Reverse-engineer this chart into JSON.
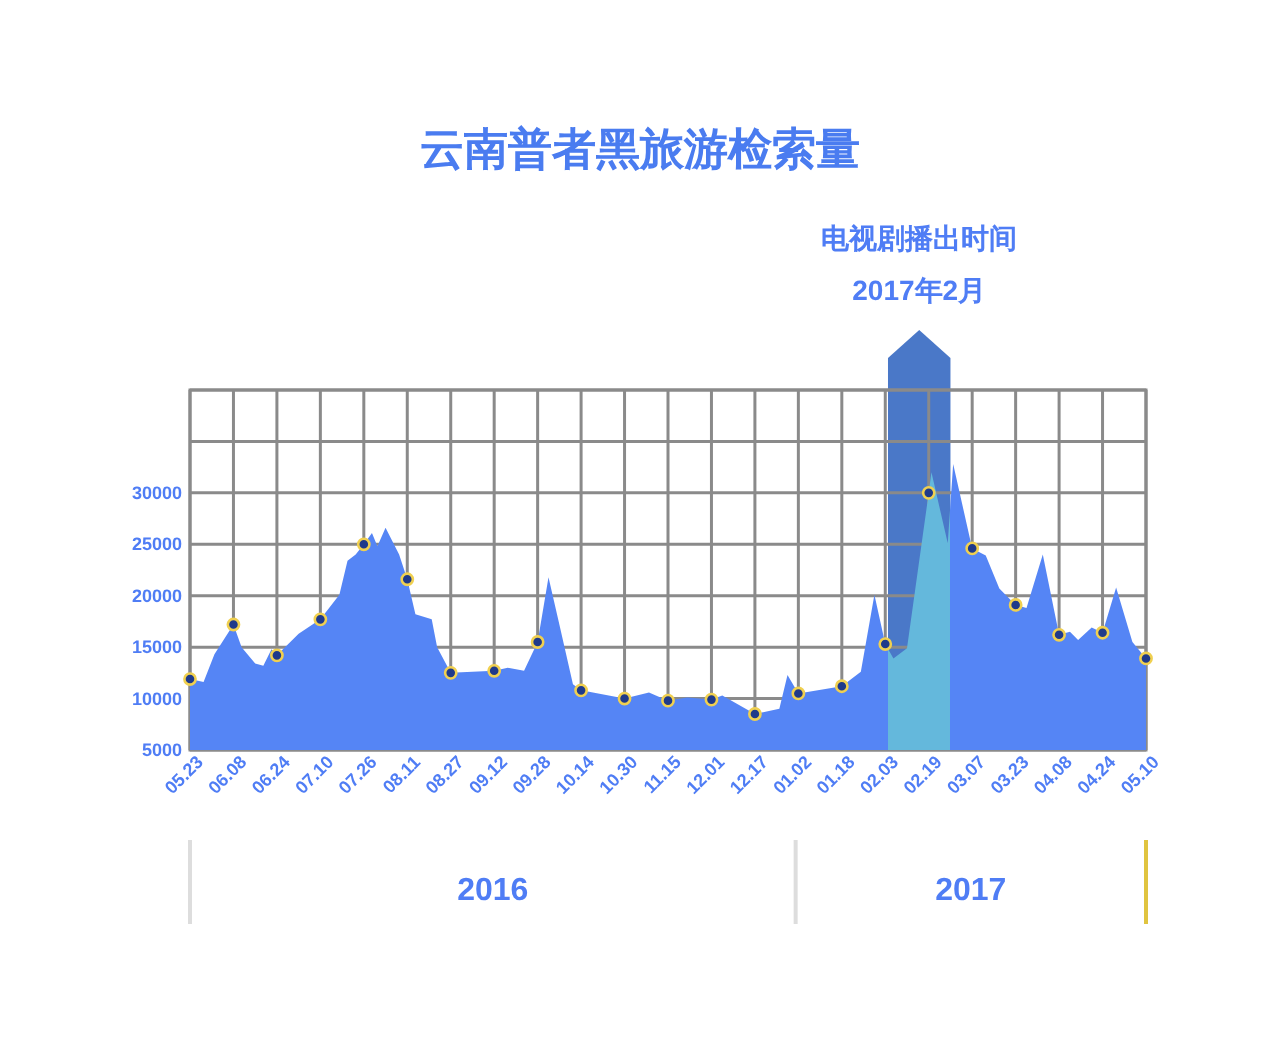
{
  "chart_data": {
    "type": "area",
    "title": "云南普者黑旅游检索量",
    "xlim": [
      "2016-05-23",
      "2017-05-10"
    ],
    "xticks": [
      {
        "value": "2016-05-23",
        "label": "05.23"
      },
      {
        "value": "2016-06-08",
        "label": "06.08"
      },
      {
        "value": "2016-06-24",
        "label": "06.24"
      },
      {
        "value": "2016-07-10",
        "label": "07.10"
      },
      {
        "value": "2016-07-26",
        "label": "07.26"
      },
      {
        "value": "2016-08-11",
        "label": "08.11"
      },
      {
        "value": "2016-08-27",
        "label": "08.27"
      },
      {
        "value": "2016-09-12",
        "label": "09.12"
      },
      {
        "value": "2016-09-28",
        "label": "09.28"
      },
      {
        "value": "2016-10-14",
        "label": "10.14"
      },
      {
        "value": "2016-10-30",
        "label": "10.30"
      },
      {
        "value": "2016-11-15",
        "label": "11.15"
      },
      {
        "value": "2016-12-01",
        "label": "12.01"
      },
      {
        "value": "2016-12-17",
        "label": "12.17"
      },
      {
        "value": "2017-01-02",
        "label": "01.02"
      },
      {
        "value": "2017-01-18",
        "label": "01.18"
      },
      {
        "value": "2017-02-03",
        "label": "02.03"
      },
      {
        "value": "2017-02-19",
        "label": "02.19"
      },
      {
        "value": "2017-03-07",
        "label": "03.07"
      },
      {
        "value": "2017-03-23",
        "label": "03.23"
      },
      {
        "value": "2017-04-08",
        "label": "04.08"
      },
      {
        "value": "2017-04-24",
        "label": "04.24"
      },
      {
        "value": "2017-05-10",
        "label": "05.10"
      }
    ],
    "ylim": [
      5000,
      40000
    ],
    "yticks": [
      5000,
      10000,
      15000,
      20000,
      25000,
      30000,
      {
        "value": 35000,
        "label": null
      },
      {
        "value": 40000,
        "label": null
      }
    ],
    "grid": true,
    "series": [
      {
        "color": "#5585f5",
        "x": [
          "2016-05-23",
          "2016-05-28",
          "2016-06-01",
          "2016-06-08",
          "2016-06-11",
          "2016-06-16",
          "2016-06-19",
          "2016-06-22",
          "2016-06-24",
          "2016-07-02",
          "2016-07-10",
          "2016-07-17",
          "2016-07-20",
          "2016-07-23",
          "2016-07-26",
          "2016-07-29",
          "2016-07-31",
          "2016-08-03",
          "2016-08-08",
          "2016-08-11",
          "2016-08-14",
          "2016-08-20",
          "2016-08-22",
          "2016-08-27",
          "2016-09-12",
          "2016-09-17",
          "2016-09-23",
          "2016-09-28",
          "2016-10-02",
          "2016-10-06",
          "2016-10-11",
          "2016-10-14",
          "2016-10-30",
          "2016-11-08",
          "2016-11-15",
          "2016-11-22",
          "2016-12-01",
          "2016-12-05",
          "2016-12-17",
          "2016-12-26",
          "2016-12-29",
          "2017-01-02",
          "2017-01-18",
          "2017-01-25",
          "2017-01-30",
          "2017-02-03",
          "2017-02-06",
          "2017-02-11",
          "2017-02-19",
          "2017-02-20",
          "2017-02-26",
          "2017-02-28",
          "2017-03-07",
          "2017-03-12",
          "2017-03-17",
          "2017-03-23",
          "2017-03-27",
          "2017-04-02",
          "2017-04-08",
          "2017-04-12",
          "2017-04-15",
          "2017-04-20",
          "2017-04-24",
          "2017-04-29",
          "2017-05-05",
          "2017-05-10"
        ],
        "values": [
          11900,
          11600,
          14300,
          17200,
          15000,
          13400,
          13200,
          14800,
          14200,
          16300,
          17700,
          20100,
          23400,
          24000,
          25000,
          26100,
          24800,
          26600,
          24000,
          21600,
          18200,
          17700,
          15000,
          12500,
          12700,
          13000,
          12700,
          15500,
          21800,
          17200,
          11400,
          10800,
          10000,
          10600,
          9800,
          10100,
          9900,
          10300,
          8500,
          9000,
          12300,
          10500,
          11200,
          12600,
          20100,
          15300,
          13900,
          14900,
          30000,
          32000,
          25100,
          32800,
          24600,
          23900,
          20700,
          19100,
          18800,
          24000,
          16200,
          16500,
          15700,
          16900,
          16400,
          20800,
          15500,
          13900
        ]
      },
      {
        "type": "scatter",
        "color": "#1f3a8a",
        "marker": "circle",
        "x": [
          "2016-05-23",
          "2016-06-08",
          "2016-06-24",
          "2016-07-10",
          "2016-07-26",
          "2016-08-11",
          "2016-08-27",
          "2016-09-12",
          "2016-09-28",
          "2016-10-14",
          "2016-10-30",
          "2016-11-15",
          "2016-12-01",
          "2016-12-17",
          "2017-01-02",
          "2017-01-18",
          "2017-02-03",
          "2017-02-19",
          "2017-03-07",
          "2017-03-23",
          "2017-04-08",
          "2017-04-24",
          "2017-05-10"
        ],
        "values": [
          11900,
          17200,
          14200,
          17700,
          25000,
          21600,
          12500,
          12700,
          15500,
          10800,
          10000,
          9800,
          9900,
          8500,
          10500,
          11200,
          15300,
          30000,
          24600,
          19100,
          16200,
          16400,
          13900
        ]
      }
    ],
    "bands": [
      {
        "axis": "x",
        "from": "2017-02-04",
        "to": "2017-02-27",
        "label": "2017年2月",
        "color": "#4a78c8"
      }
    ],
    "annotations": [
      "电视剧播出时间",
      "2016",
      "2017"
    ]
  }
}
